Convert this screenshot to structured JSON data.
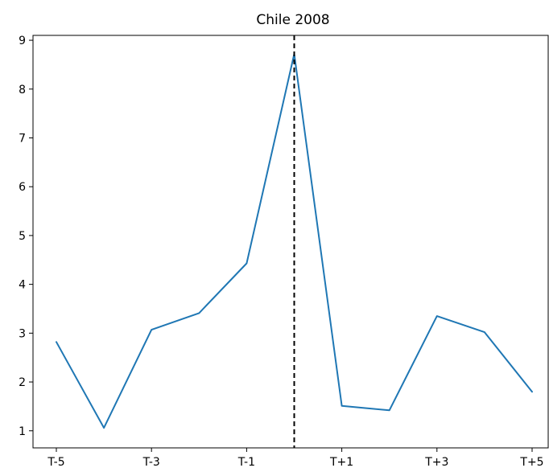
{
  "chart_data": {
    "type": "line",
    "title": "Chile 2008",
    "xlabel": "",
    "ylabel": "",
    "x": [
      "T-5",
      "T-4",
      "T-3",
      "T-2",
      "T-1",
      "T",
      "T+1",
      "T+2",
      "T+3",
      "T+4",
      "T+5"
    ],
    "x_tick_labels": [
      "T-5",
      "T-3",
      "T-1",
      "T+1",
      "T+3",
      "T+5"
    ],
    "y_ticks": [
      1,
      2,
      3,
      4,
      5,
      6,
      7,
      8,
      9
    ],
    "ylim": [
      0.65,
      9.1
    ],
    "series": [
      {
        "values": [
          2.82,
          1.06,
          3.07,
          3.41,
          4.43,
          8.72,
          1.51,
          1.42,
          3.35,
          3.02,
          1.8
        ],
        "color": "#1f77b4"
      }
    ],
    "vline": {
      "x": "T",
      "style": "dashed",
      "color": "#000000"
    },
    "grid": false,
    "legend": "none"
  }
}
